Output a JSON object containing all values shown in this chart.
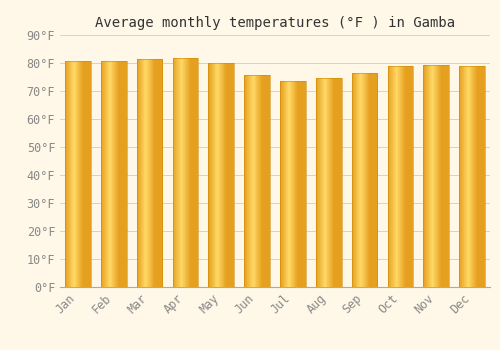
{
  "title": "Average monthly temperatures (°F ) in Gamba",
  "months": [
    "Jan",
    "Feb",
    "Mar",
    "Apr",
    "May",
    "Jun",
    "Jul",
    "Aug",
    "Sep",
    "Oct",
    "Nov",
    "Dec"
  ],
  "values": [
    80.6,
    80.6,
    81.5,
    81.7,
    79.9,
    75.6,
    73.4,
    74.7,
    76.6,
    78.8,
    79.3,
    78.8
  ],
  "bar_color_light": "#FFD966",
  "bar_color_dark": "#E6A020",
  "ylim": [
    0,
    90
  ],
  "ytick_interval": 10,
  "background_color": "#FFF8E8",
  "grid_color": "#CCCCCC",
  "title_fontsize": 10,
  "tick_fontsize": 8.5,
  "font_color": "#888888"
}
